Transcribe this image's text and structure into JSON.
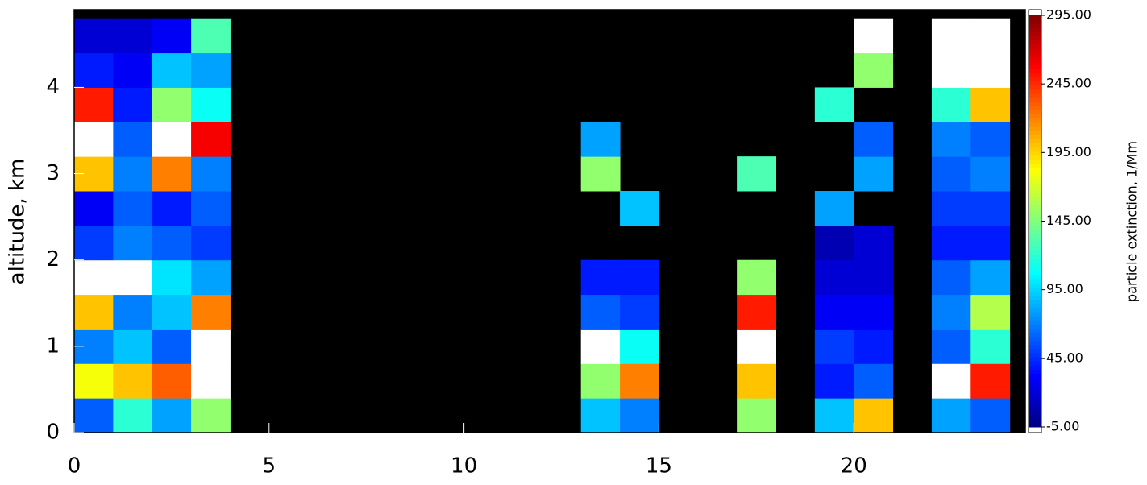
{
  "chart_data": {
    "type": "heatmap",
    "ylabel": "altitude, km",
    "colorbar_label": "particle extinction, 1/Mm",
    "xlim": [
      0,
      24.4
    ],
    "ylim": [
      0,
      4.9
    ],
    "xticks": [
      0,
      5,
      10,
      15,
      20
    ],
    "yticks": [
      0,
      1,
      2,
      3,
      4
    ],
    "clim": [
      -5,
      295
    ],
    "colorbar_ticks": [
      {
        "value": -5,
        "label": "-5.00"
      },
      {
        "value": 45,
        "label": "45.00"
      },
      {
        "value": 95,
        "label": "95.00"
      },
      {
        "value": 145,
        "label": "145.00"
      },
      {
        "value": 195,
        "label": "195.00"
      },
      {
        "value": 245,
        "label": "245.00"
      },
      {
        "value": 295,
        "label": "295.00"
      }
    ],
    "colormap": "jet",
    "over_color": "#ffffff",
    "missing_color": "#000000",
    "x_edges": [
      0,
      1,
      2,
      3,
      4,
      5,
      6,
      7,
      8,
      9,
      10,
      11,
      12,
      13,
      14,
      15,
      16,
      17,
      18,
      19,
      20,
      21,
      22,
      23,
      24
    ],
    "y_edges": [
      0,
      0.4,
      0.8,
      1.2,
      1.6,
      2.0,
      2.4,
      2.8,
      3.2,
      3.6,
      4.0,
      4.4,
      4.8
    ],
    "z": [
      [
        60,
        120,
        80,
        150,
        null,
        null,
        null,
        null,
        null,
        null,
        null,
        null,
        null,
        90,
        70,
        null,
        null,
        150,
        null,
        90,
        200,
        null,
        80,
        60
      ],
      [
        180,
        200,
        230,
        320,
        null,
        null,
        null,
        null,
        null,
        null,
        null,
        null,
        null,
        150,
        220,
        null,
        null,
        200,
        null,
        40,
        60,
        null,
        320,
        250
      ],
      [
        70,
        90,
        60,
        320,
        null,
        null,
        null,
        null,
        null,
        null,
        null,
        null,
        null,
        320,
        110,
        null,
        null,
        320,
        null,
        50,
        40,
        null,
        60,
        120
      ],
      [
        200,
        70,
        90,
        220,
        null,
        null,
        null,
        null,
        null,
        null,
        null,
        null,
        null,
        60,
        50,
        null,
        null,
        250,
        null,
        30,
        30,
        null,
        70,
        160
      ],
      [
        320,
        320,
        100,
        80,
        null,
        null,
        null,
        null,
        null,
        null,
        null,
        null,
        null,
        40,
        40,
        null,
        null,
        150,
        null,
        20,
        20,
        null,
        60,
        80
      ],
      [
        50,
        70,
        60,
        50,
        null,
        null,
        null,
        null,
        null,
        null,
        null,
        null,
        null,
        null,
        null,
        null,
        null,
        null,
        null,
        10,
        20,
        null,
        40,
        40
      ],
      [
        30,
        60,
        40,
        60,
        null,
        null,
        null,
        null,
        null,
        null,
        null,
        null,
        null,
        null,
        90,
        null,
        null,
        null,
        null,
        80,
        null,
        null,
        50,
        50
      ],
      [
        200,
        70,
        220,
        70,
        null,
        null,
        null,
        null,
        null,
        null,
        null,
        null,
        null,
        150,
        null,
        null,
        null,
        130,
        null,
        null,
        80,
        null,
        60,
        70
      ],
      [
        320,
        60,
        320,
        260,
        null,
        null,
        null,
        null,
        null,
        null,
        null,
        null,
        null,
        80,
        null,
        null,
        null,
        null,
        null,
        null,
        60,
        null,
        70,
        60
      ],
      [
        250,
        40,
        150,
        110,
        null,
        null,
        null,
        null,
        null,
        null,
        null,
        null,
        null,
        null,
        null,
        null,
        null,
        null,
        null,
        120,
        null,
        null,
        120,
        200
      ],
      [
        40,
        30,
        90,
        80,
        null,
        null,
        null,
        null,
        null,
        null,
        null,
        null,
        null,
        null,
        null,
        null,
        null,
        null,
        null,
        null,
        150,
        null,
        320,
        320
      ],
      [
        20,
        20,
        30,
        130,
        null,
        null,
        null,
        null,
        null,
        null,
        null,
        null,
        null,
        null,
        null,
        null,
        null,
        null,
        null,
        null,
        320,
        null,
        320,
        320
      ]
    ]
  }
}
